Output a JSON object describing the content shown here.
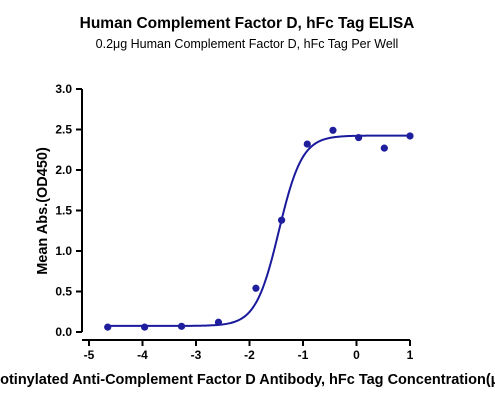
{
  "chart_data": {
    "type": "scatter",
    "title": "Human Complement Factor D, hFc Tag ELISA",
    "subtitle": "0.2μg Human Complement Factor D, hFc Tag Per Well",
    "xlabel": "Log Biotinylated Anti-Complement Factor D  Antibody, hFc Tag Concentration(μg/mL)",
    "ylabel": "Mean Abs.(OD450)",
    "xlim": [
      -5,
      1
    ],
    "ylim": [
      0,
      3.0
    ],
    "x_ticks": [
      "-5",
      "-4",
      "-3",
      "-2",
      "-1",
      "0",
      "1"
    ],
    "y_ticks": [
      "0.0",
      "0.5",
      "1.0",
      "1.5",
      "2.0",
      "2.5",
      "3.0"
    ],
    "grid": false,
    "legend": "none",
    "point_color": "#1f1f9e",
    "curve_color": "#1a1a9c",
    "series": [
      {
        "x": [
          -4.65,
          -3.96,
          -3.27,
          -2.58,
          -1.88,
          -1.4,
          -0.92,
          -0.44,
          0.04,
          0.52,
          1.0
        ],
        "y": [
          0.06,
          0.06,
          0.07,
          0.12,
          0.54,
          1.38,
          2.32,
          2.49,
          2.4,
          2.27,
          2.42
        ]
      }
    ],
    "fit": {
      "model": "4PL",
      "bottom": 0.075,
      "top": 2.425,
      "logEC50": -1.45,
      "hill": 2.0
    }
  }
}
